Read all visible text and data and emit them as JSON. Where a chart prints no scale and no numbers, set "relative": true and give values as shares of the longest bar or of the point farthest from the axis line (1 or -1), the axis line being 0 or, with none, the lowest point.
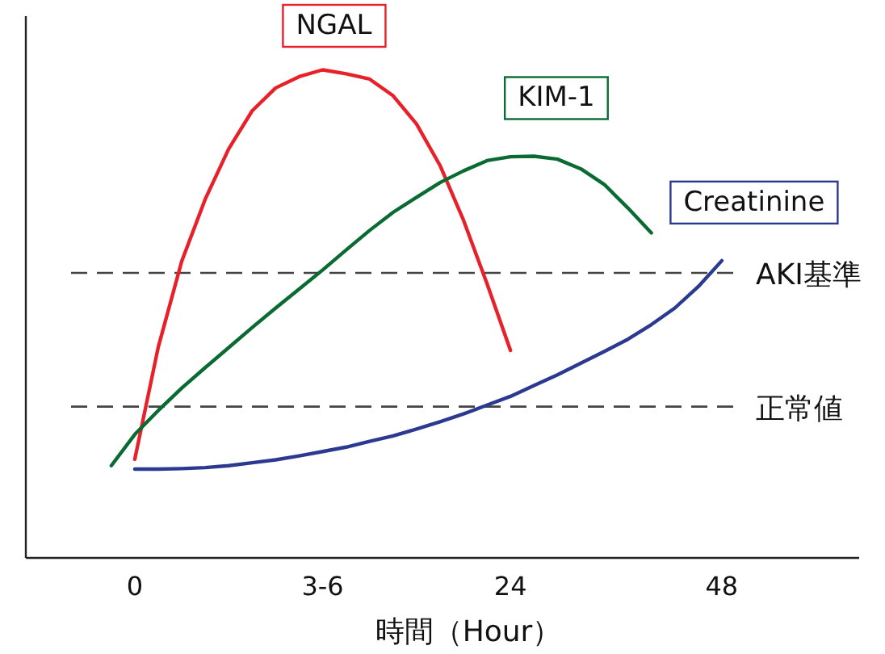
{
  "chart_data": {
    "type": "line",
    "relative": true,
    "xlabel": "時間（Hour）",
    "categories": [
      null,
      "0",
      null,
      null,
      null,
      null,
      null,
      null,
      null,
      "3-6",
      null,
      null,
      null,
      null,
      null,
      null,
      null,
      "24",
      null,
      null,
      null,
      null,
      null,
      null,
      null,
      null,
      "48"
    ],
    "legend": false,
    "grid": false,
    "marker": "none",
    "line_style": "solid",
    "series": [
      {
        "name": "NGAL",
        "color": "#e8202a",
        "values": [
          null,
          0.202,
          0.432,
          0.608,
          0.735,
          0.838,
          0.916,
          0.963,
          0.986,
          1.0,
          0.992,
          0.981,
          0.947,
          0.889,
          0.804,
          0.692,
          0.562,
          0.425,
          null,
          null,
          null,
          null,
          null,
          null,
          null,
          null,
          null
        ]
      },
      {
        "name": "KIM-1",
        "color": "#0a6b32",
        "values": [
          0.189,
          0.253,
          0.302,
          0.348,
          0.39,
          0.431,
          0.472,
          0.512,
          0.551,
          0.59,
          0.631,
          0.671,
          0.708,
          0.739,
          0.769,
          0.793,
          0.814,
          0.822,
          0.823,
          0.817,
          0.797,
          0.765,
          0.717,
          0.666,
          null,
          null,
          null
        ]
      },
      {
        "name": "Creatinine",
        "color": "#2b3990",
        "values": [
          null,
          0.182,
          0.182,
          0.183,
          0.185,
          0.189,
          0.195,
          0.201,
          0.209,
          0.218,
          0.227,
          0.239,
          0.25,
          0.264,
          0.279,
          0.295,
          0.313,
          0.331,
          0.353,
          0.375,
          0.399,
          0.423,
          0.448,
          0.478,
          0.512,
          0.556,
          0.609
        ]
      }
    ],
    "ref_lines": [
      {
        "axis": "y",
        "value": 0.584,
        "label": "AKI基準",
        "color": "#444444",
        "line_style": "dashed"
      },
      {
        "axis": "y",
        "value": 0.31,
        "label": "正常値",
        "color": "#444444",
        "line_style": "dashed"
      }
    ]
  }
}
